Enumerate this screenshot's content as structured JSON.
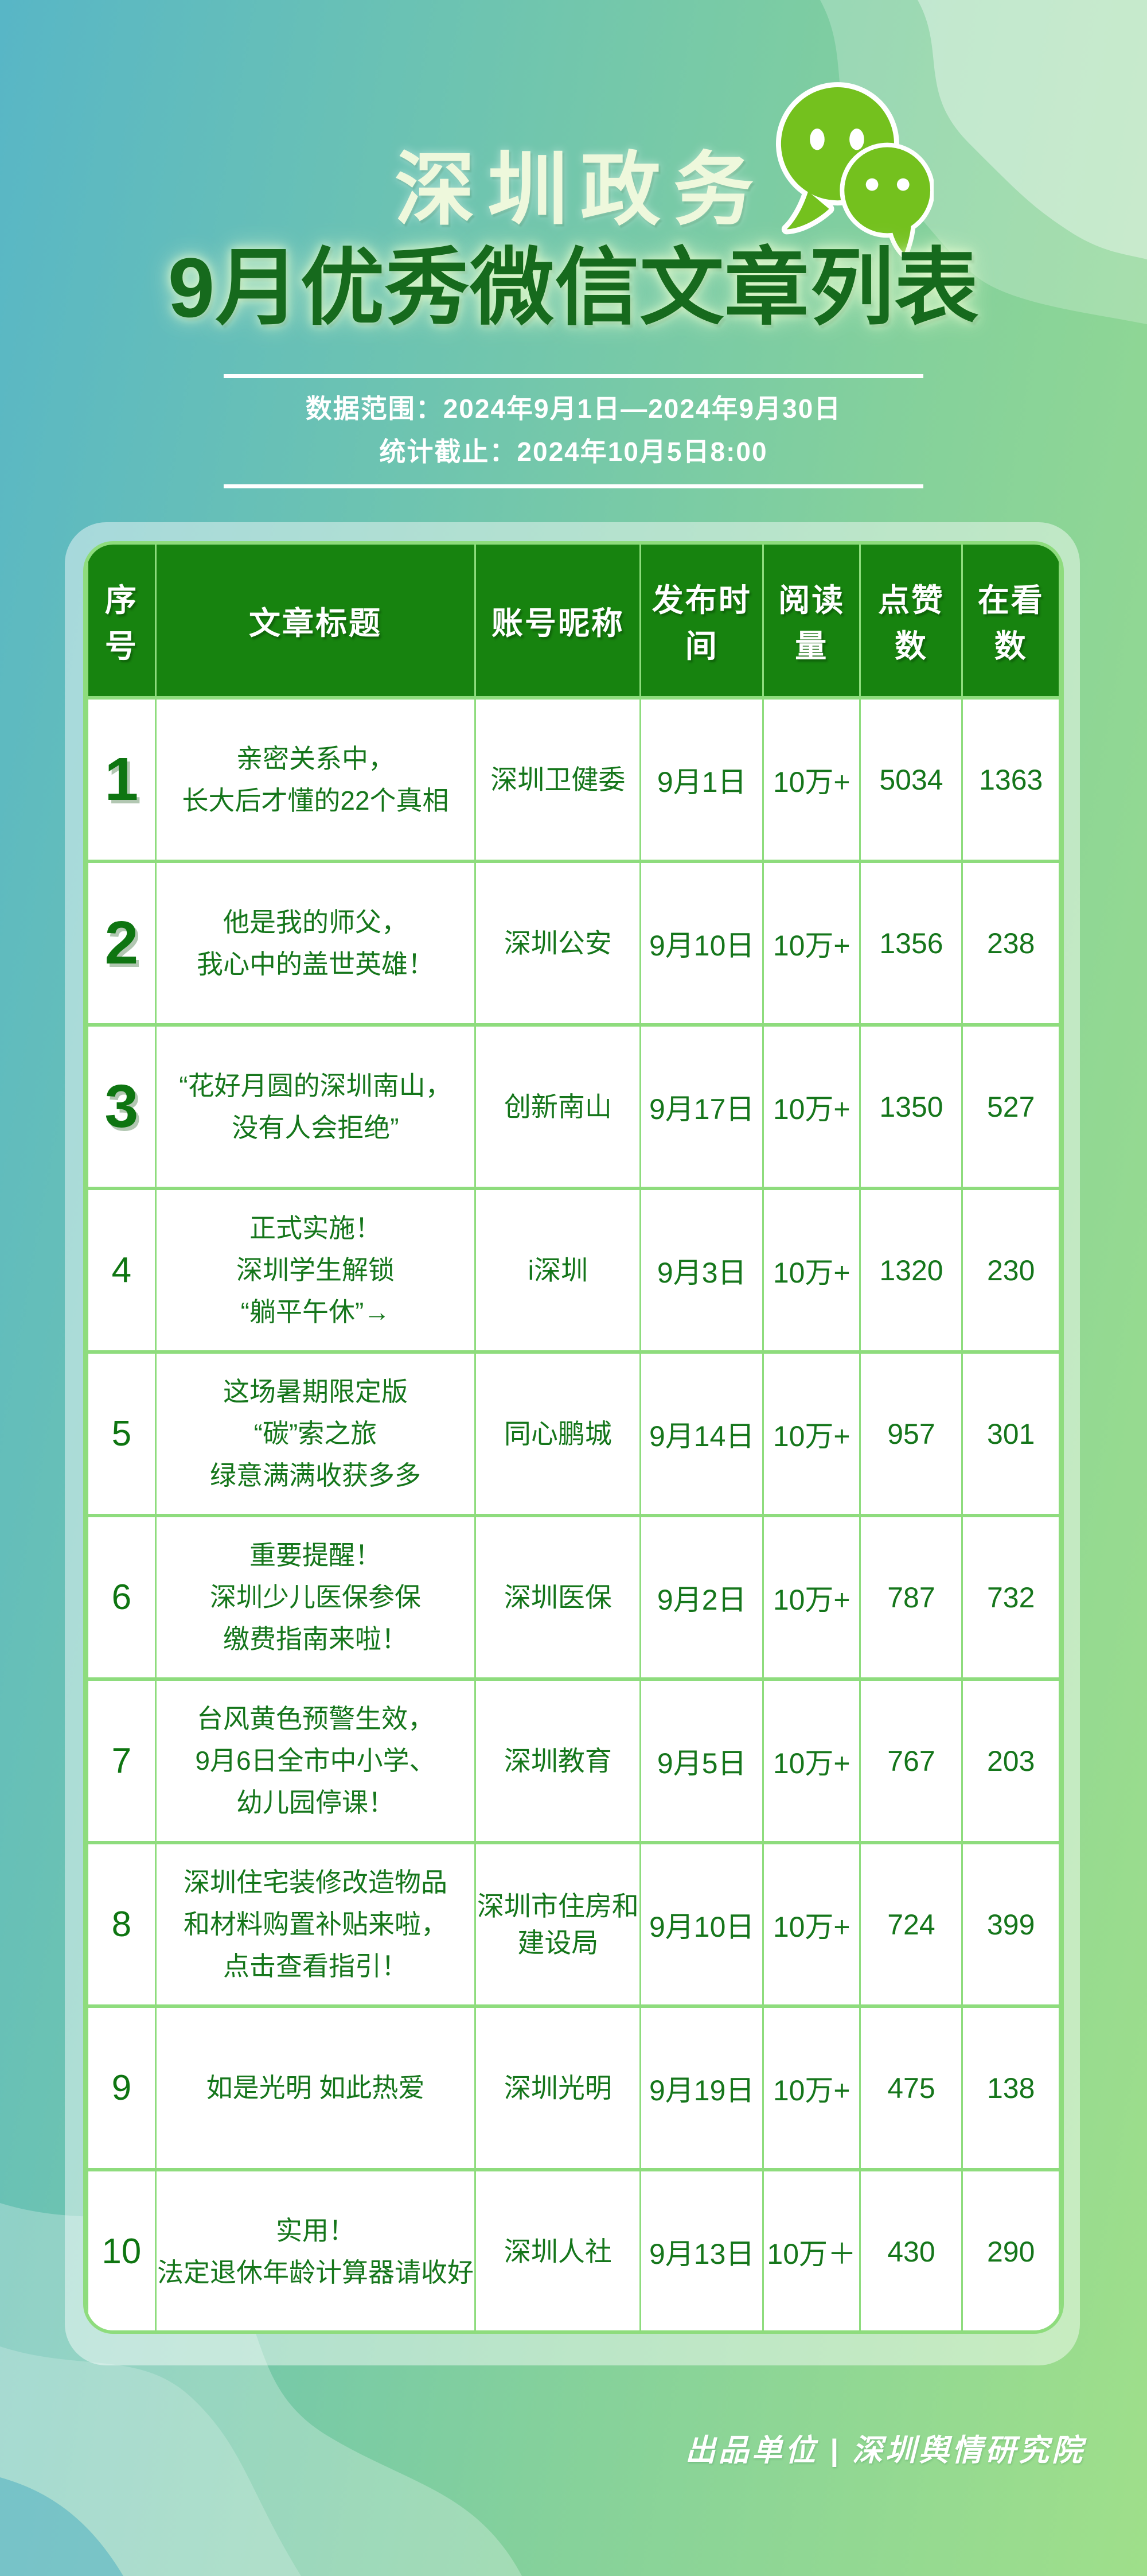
{
  "header": {
    "brand": "深圳政务",
    "title": "9月优秀微信文章列表",
    "date_range": "数据范围：2024年9月1日—2024年9月30日",
    "deadline": "统计截止：2024年10月5日8:00",
    "icon": "wechat-bubbles-icon"
  },
  "table": {
    "headers": [
      "序号",
      "文章标题",
      "账号昵称",
      "发布时间",
      "阅读量",
      "点赞数",
      "在看数"
    ],
    "rows": [
      {
        "rank": "1",
        "top3": true,
        "title_lines": [
          "亲密关系中，",
          "长大后才懂的22个真相"
        ],
        "account_lines": [
          "深圳卫健委"
        ],
        "publish_date": "9月1日",
        "reads": "10万+",
        "likes": "5034",
        "watches": "1363"
      },
      {
        "rank": "2",
        "top3": true,
        "title_lines": [
          "他是我的师父，",
          "我心中的盖世英雄！"
        ],
        "account_lines": [
          "深圳公安"
        ],
        "publish_date": "9月10日",
        "reads": "10万+",
        "likes": "1356",
        "watches": "238"
      },
      {
        "rank": "3",
        "top3": true,
        "title_lines": [
          "“花好月圆的深圳南山，",
          "没有人会拒绝”"
        ],
        "account_lines": [
          "创新南山"
        ],
        "publish_date": "9月17日",
        "reads": "10万+",
        "likes": "1350",
        "watches": "527"
      },
      {
        "rank": "4",
        "top3": false,
        "title_lines": [
          "正式实施！",
          "深圳学生解锁",
          "“躺平午休”→"
        ],
        "account_lines": [
          "i深圳"
        ],
        "publish_date": "9月3日",
        "reads": "10万+",
        "likes": "1320",
        "watches": "230"
      },
      {
        "rank": "5",
        "top3": false,
        "title_lines": [
          "这场暑期限定版",
          "“碳”索之旅",
          "绿意满满收获多多"
        ],
        "account_lines": [
          "同心鹏城"
        ],
        "publish_date": "9月14日",
        "reads": "10万+",
        "likes": "957",
        "watches": "301"
      },
      {
        "rank": "6",
        "top3": false,
        "title_lines": [
          "重要提醒！",
          "深圳少儿医保参保",
          "缴费指南来啦！"
        ],
        "account_lines": [
          "深圳医保"
        ],
        "publish_date": "9月2日",
        "reads": "10万+",
        "likes": "787",
        "watches": "732"
      },
      {
        "rank": "7",
        "top3": false,
        "title_lines": [
          "台风黄色预警生效，",
          "9月6日全市中小学、",
          "幼儿园停课！"
        ],
        "account_lines": [
          "深圳教育"
        ],
        "publish_date": "9月5日",
        "reads": "10万+",
        "likes": "767",
        "watches": "203"
      },
      {
        "rank": "8",
        "top3": false,
        "title_lines": [
          "深圳住宅装修改造物品",
          "和材料购置补贴来啦，",
          "点击查看指引！"
        ],
        "account_lines": [
          "深圳市住房和",
          "建设局"
        ],
        "publish_date": "9月10日",
        "reads": "10万+",
        "likes": "724",
        "watches": "399"
      },
      {
        "rank": "9",
        "top3": false,
        "title_lines": [
          "如是光明 如此热爱"
        ],
        "account_lines": [
          "深圳光明"
        ],
        "publish_date": "9月19日",
        "reads": "10万+",
        "likes": "475",
        "watches": "138"
      },
      {
        "rank": "10",
        "top3": false,
        "title_lines": [
          "实用！",
          "法定退休年龄计算器请收好"
        ],
        "account_lines": [
          "深圳人社"
        ],
        "publish_date": "9月13日",
        "reads": "10万＋",
        "likes": "430",
        "watches": "290"
      }
    ]
  },
  "footer": {
    "credit": "出品单位 | 深圳舆情研究院"
  },
  "colors": {
    "header_green": "#17830f",
    "grid_green": "#8edc7d",
    "cell_text_green": "#15761b",
    "title_dark_green": "#166a1d",
    "brand_cream": "#eef8dc",
    "wechat_green": "#74c11e",
    "bg_teal": "#58b6c6",
    "bg_green": "#9fdf8a"
  }
}
